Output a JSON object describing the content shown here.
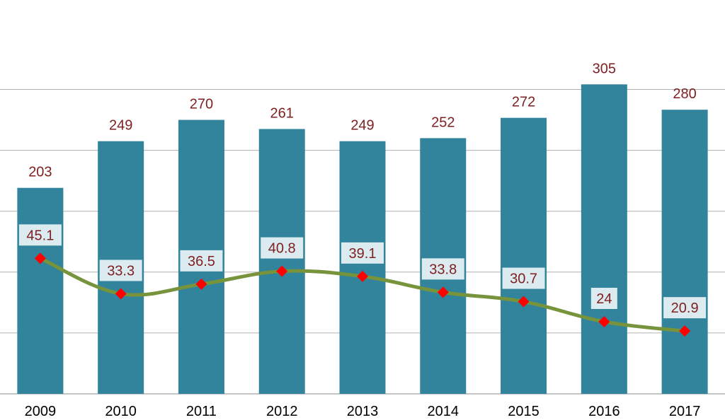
{
  "chart_data": {
    "type": "bar",
    "categories": [
      "2009",
      "2010",
      "2011",
      "2012",
      "2013",
      "2014",
      "2015",
      "2016",
      "2017"
    ],
    "series": [
      {
        "type": "bar",
        "values": [
          203,
          249,
          270,
          261,
          249,
          252,
          272,
          305,
          280
        ],
        "color": "#31849b",
        "label_color": "#7f1f1f"
      },
      {
        "type": "line",
        "values": [
          45.1,
          33.3,
          36.5,
          40.8,
          39.1,
          33.8,
          30.7,
          24,
          20.9
        ],
        "line_color": "#77933c",
        "marker_color": "#ff0000",
        "marker_shape": "diamond",
        "label_color": "#7f1f1f",
        "label_box_color": "#dcebf0"
      }
    ],
    "bar_axis_range": [
      0,
      300
    ],
    "line_axis_range": [
      0,
      117
    ],
    "gridlines": true,
    "gridline_color": "#b0b0b0",
    "legend": false
  }
}
